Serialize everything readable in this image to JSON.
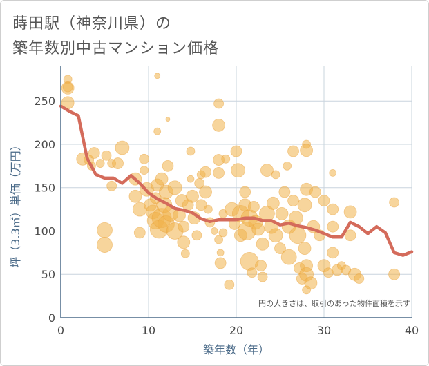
{
  "chart_data": {
    "type": "scatter",
    "title_line1": "蒔田駅（神奈川県）の",
    "title_line2": "築年数別中古マンション価格",
    "xlabel": "築年数（年）",
    "ylabel": "坪（3.3㎡）単価（万円）",
    "xlim": [
      0,
      40
    ],
    "ylim": [
      0,
      290
    ],
    "xticks": [
      0,
      10,
      20,
      30,
      40
    ],
    "yticks": [
      0,
      50,
      100,
      150,
      200,
      250
    ],
    "grid": true,
    "note": "円の大きさは、取引のあった物件面積を示す",
    "colors": {
      "bubble": "#f0b24a",
      "line": "#d46b5b",
      "grid": "#c9d4de",
      "axis": "#4a6a88"
    },
    "bubbles": [
      [
        0.8,
        275,
        6
      ],
      [
        0.8,
        265,
        9
      ],
      [
        0.8,
        266,
        7
      ],
      [
        0.8,
        248,
        9
      ],
      [
        2.5,
        183,
        9
      ],
      [
        3.2,
        182,
        7
      ],
      [
        3.8,
        190,
        8
      ],
      [
        3.5,
        175,
        6
      ],
      [
        4.5,
        178,
        6
      ],
      [
        5.2,
        187,
        7
      ],
      [
        5.8,
        178,
        6
      ],
      [
        5.8,
        152,
        7
      ],
      [
        6.5,
        178,
        8
      ],
      [
        7,
        196,
        10
      ],
      [
        5,
        101,
        11
      ],
      [
        5,
        84,
        11
      ],
      [
        9.5,
        183,
        7
      ],
      [
        8.5,
        160,
        9
      ],
      [
        8.5,
        140,
        9
      ],
      [
        9,
        125,
        10
      ],
      [
        9,
        98,
        8
      ],
      [
        9.5,
        170,
        6
      ],
      [
        9.8,
        148,
        10
      ],
      [
        10.2,
        130,
        9
      ],
      [
        10.5,
        122,
        10
      ],
      [
        10.8,
        138,
        8
      ],
      [
        10.8,
        112,
        12
      ],
      [
        11,
        279,
        4
      ],
      [
        11,
        215,
        5
      ],
      [
        11,
        153,
        9
      ],
      [
        11.2,
        102,
        13
      ],
      [
        11.5,
        160,
        9
      ],
      [
        11.5,
        115,
        14
      ],
      [
        11.8,
        130,
        11
      ],
      [
        12,
        108,
        12
      ],
      [
        12,
        145,
        10
      ],
      [
        12.2,
        229,
        3
      ],
      [
        12.2,
        175,
        8
      ],
      [
        12.5,
        120,
        11
      ],
      [
        13,
        150,
        10
      ],
      [
        13,
        100,
        12
      ],
      [
        13.5,
        118,
        9
      ],
      [
        13.8,
        135,
        9
      ],
      [
        14,
        87,
        9
      ],
      [
        14,
        105,
        8
      ],
      [
        14.2,
        74,
        6
      ],
      [
        14.5,
        130,
        8
      ],
      [
        14.8,
        192,
        6
      ],
      [
        14.8,
        160,
        5
      ],
      [
        15,
        140,
        9
      ],
      [
        15.2,
        115,
        9
      ],
      [
        15.5,
        95,
        7
      ],
      [
        15.8,
        155,
        7
      ],
      [
        16,
        130,
        8
      ],
      [
        16,
        165,
        6
      ],
      [
        16.5,
        168,
        8
      ],
      [
        16.5,
        145,
        9
      ],
      [
        16.8,
        125,
        6
      ],
      [
        17,
        110,
        7
      ],
      [
        17.5,
        100,
        5
      ],
      [
        18,
        247,
        7
      ],
      [
        18,
        222,
        9
      ],
      [
        18,
        182,
        8
      ],
      [
        18,
        167,
        8
      ],
      [
        18,
        90,
        6
      ],
      [
        18.2,
        75,
        5
      ],
      [
        18.2,
        63,
        8
      ],
      [
        18.5,
        120,
        6
      ],
      [
        18.5,
        98,
        6
      ],
      [
        18.8,
        183,
        6
      ],
      [
        19.2,
        38,
        7
      ],
      [
        19.5,
        125,
        10
      ],
      [
        19.8,
        108,
        8
      ],
      [
        20,
        192,
        8
      ],
      [
        20.2,
        170,
        10
      ],
      [
        20.5,
        120,
        12
      ],
      [
        20.5,
        95,
        9
      ],
      [
        21,
        145,
        8
      ],
      [
        21,
        130,
        9
      ],
      [
        21.2,
        100,
        13
      ],
      [
        21.5,
        115,
        12
      ],
      [
        21.5,
        65,
        13
      ],
      [
        21.8,
        52,
        7
      ],
      [
        22,
        128,
        8
      ],
      [
        22.2,
        110,
        10
      ],
      [
        22.5,
        102,
        9
      ],
      [
        22.8,
        60,
        8
      ],
      [
        23,
        85,
        9
      ],
      [
        23,
        47,
        7
      ],
      [
        23.5,
        170,
        9
      ],
      [
        23.5,
        120,
        11
      ],
      [
        24,
        105,
        10
      ],
      [
        24.2,
        132,
        9
      ],
      [
        24.5,
        95,
        10
      ],
      [
        24.5,
        165,
        6
      ],
      [
        25,
        80,
        8
      ],
      [
        25.2,
        120,
        9
      ],
      [
        25.5,
        145,
        8
      ],
      [
        25.8,
        175,
        6
      ],
      [
        26,
        70,
        11
      ],
      [
        26,
        105,
        10
      ],
      [
        26.5,
        192,
        8
      ],
      [
        26.5,
        135,
        8
      ],
      [
        26.8,
        115,
        10
      ],
      [
        27,
        95,
        12
      ],
      [
        27.2,
        57,
        8
      ],
      [
        27.5,
        45,
        8
      ],
      [
        27.8,
        130,
        10
      ],
      [
        27.8,
        80,
        9
      ],
      [
        28,
        200,
        6
      ],
      [
        28,
        193,
        9
      ],
      [
        28,
        148,
        9
      ],
      [
        28,
        60,
        9
      ],
      [
        28,
        50,
        10
      ],
      [
        28,
        32,
        6
      ],
      [
        28.5,
        40,
        9
      ],
      [
        28.8,
        105,
        9
      ],
      [
        29,
        145,
        8
      ],
      [
        29.5,
        95,
        8
      ],
      [
        30,
        135,
        8
      ],
      [
        30,
        60,
        9
      ],
      [
        30.5,
        52,
        7
      ],
      [
        31,
        167,
        5
      ],
      [
        31,
        125,
        8
      ],
      [
        31,
        75,
        8
      ],
      [
        31,
        105,
        8
      ],
      [
        31.5,
        55,
        8
      ],
      [
        32,
        60,
        6
      ],
      [
        32.5,
        55,
        7
      ],
      [
        33,
        122,
        9
      ],
      [
        33,
        95,
        8
      ],
      [
        33.5,
        50,
        9
      ],
      [
        34,
        45,
        7
      ],
      [
        38,
        133,
        7
      ],
      [
        38,
        50,
        8
      ]
    ],
    "line": {
      "x": [
        0,
        1,
        2,
        3,
        4,
        5,
        6,
        7,
        8,
        9,
        10,
        11,
        12,
        13,
        14,
        15,
        16,
        17,
        18,
        19,
        20,
        21,
        22,
        23,
        24,
        25,
        26,
        27,
        28,
        29,
        30,
        31,
        32,
        33,
        34,
        35,
        36,
        37,
        38,
        39,
        40
      ],
      "y": [
        244,
        238,
        233,
        184,
        165,
        161,
        161,
        155,
        164,
        155,
        144,
        137,
        132,
        126,
        124,
        121,
        114,
        111,
        113,
        113,
        113,
        115,
        115,
        112,
        112,
        107,
        109,
        106,
        104,
        101,
        97,
        93,
        93,
        110,
        105,
        97,
        105,
        98,
        75,
        72,
        76
      ]
    }
  }
}
